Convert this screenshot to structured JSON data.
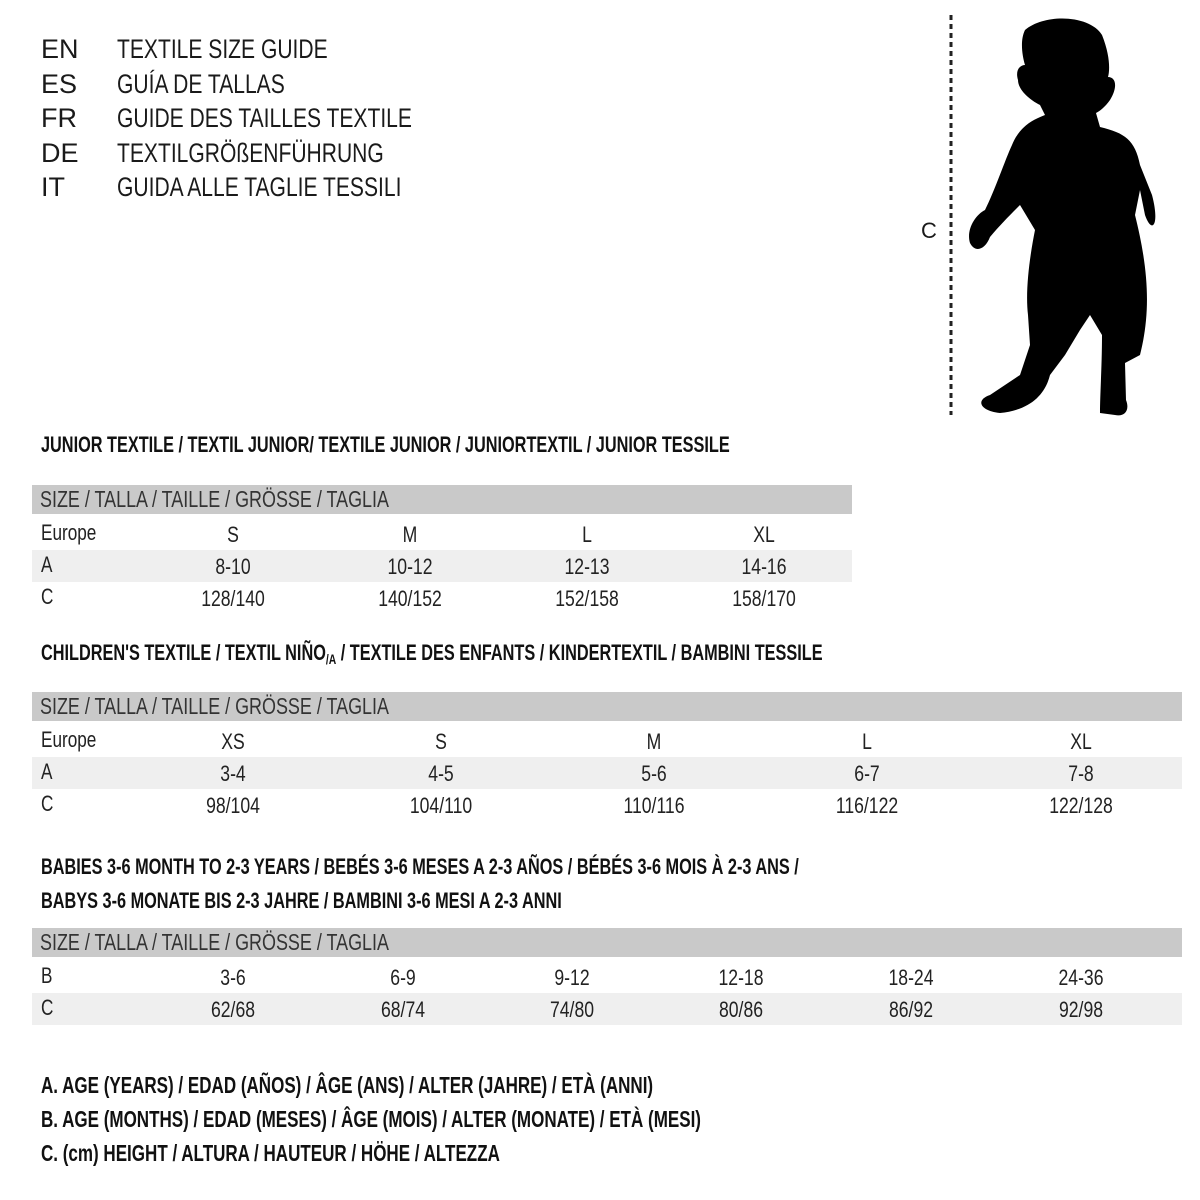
{
  "titles": [
    {
      "code": "EN",
      "text": "TEXTILE SIZE GUIDE"
    },
    {
      "code": "ES",
      "text": "GUÍA DE TALLAS"
    },
    {
      "code": "FR",
      "text": "GUIDE DES TAILLES TEXTILE"
    },
    {
      "code": "DE",
      "text": "TEXTILGRÖßENFÜHRUNG"
    },
    {
      "code": "IT",
      "text": "GUIDA ALLE TAGLIE TESSILI"
    }
  ],
  "figure": {
    "measure_label": "C",
    "icon": "child-silhouette-icon"
  },
  "colors": {
    "header_bg": "#c9c9c9",
    "shaded_row": "#efefef"
  },
  "sections": [
    {
      "heading": "JUNIOR TEXTILE / TEXTIL JUNIOR/ TEXTILE JUNIOR / JUNIORTEXTIL / JUNIOR TESSILE",
      "header": "SIZE / TALLA / TAILLE / GRÖSSE / TAGLIA",
      "rows": [
        {
          "label": "Europe",
          "values": [
            "S",
            "M",
            "L",
            "XL"
          ],
          "shaded": false
        },
        {
          "label": "A",
          "values": [
            "8-10",
            "10-12",
            "12-13",
            "14-16"
          ],
          "shaded": true
        },
        {
          "label": "C",
          "values": [
            "128/140",
            "140/152",
            "152/158",
            "158/170"
          ],
          "shaded": false
        }
      ]
    },
    {
      "heading_pre": "CHILDREN'S TEXTILE / TEXTIL NIÑO",
      "heading_sub": "/A",
      "heading_post": " / TEXTILE DES ENFANTS / KINDERTEXTIL / BAMBINI TESSILE",
      "header": "SIZE / TALLA / TAILLE / GRÖSSE / TAGLIA",
      "rows": [
        {
          "label": "Europe",
          "values": [
            "XS",
            "S",
            "M",
            "L",
            "XL"
          ],
          "shaded": false
        },
        {
          "label": "A",
          "values": [
            "3-4",
            "4-5",
            "5-6",
            "6-7",
            "7-8"
          ],
          "shaded": true
        },
        {
          "label": "C",
          "values": [
            "98/104",
            "104/110",
            "110/116",
            "116/122",
            "122/128"
          ],
          "shaded": false
        }
      ]
    },
    {
      "heading_line1": "BABIES 3-6 MONTH TO 2-3 YEARS / BEBÉS 3-6 MESES A 2-3 AÑOS / BÉBÉS 3-6 MOIS À 2-3 ANS /",
      "heading_line2": "BABYS 3-6 MONATE BIS 2-3 JAHRE / BAMBINI 3-6 MESI A 2-3 ANNI",
      "header": "SIZE / TALLA / TAILLE / GRÖSSE / TAGLIA",
      "rows": [
        {
          "label": "B",
          "values": [
            "3-6",
            "6-9",
            "9-12",
            "12-18",
            "18-24",
            "24-36"
          ],
          "shaded": false
        },
        {
          "label": "C",
          "values": [
            "62/68",
            "68/74",
            "74/80",
            "80/86",
            "86/92",
            "92/98"
          ],
          "shaded": true
        }
      ]
    }
  ],
  "legend": [
    "A. AGE (YEARS) / EDAD (AÑOS) / ÂGE (ANS) / ALTER (JAHRE) / ETÀ (ANNI)",
    "B. AGE (MONTHS) / EDAD (MESES) / ÂGE (MOIS) / ALTER (MONATE) / ETÀ (MESI)",
    "C. (cm) HEIGHT / ALTURA / HAUTEUR / HÖHE / ALTEZZA"
  ]
}
